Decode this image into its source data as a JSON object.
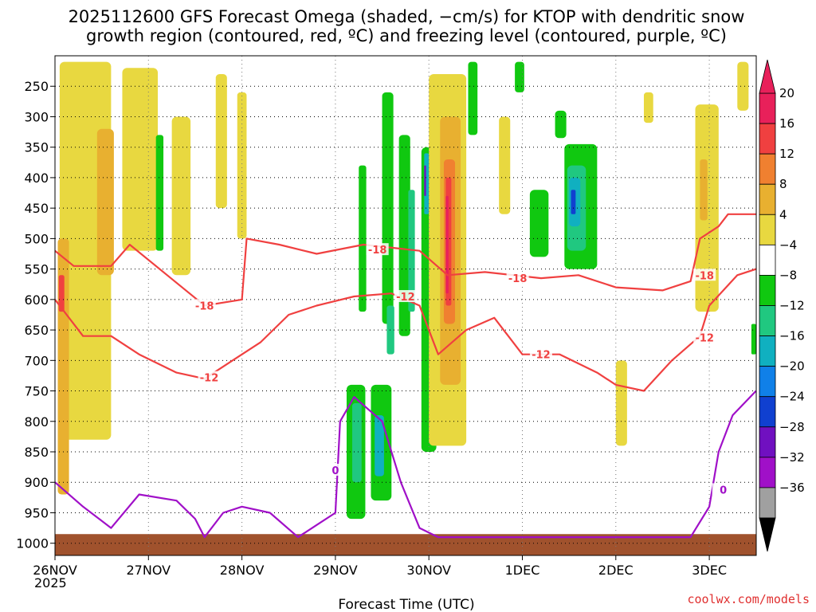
{
  "chart_data": {
    "type": "heatmap",
    "title_line1": "2025112600 GFS Forecast Omega (shaded, −cm/s) for KTOP with dendritic snow",
    "title_line2": "growth region (contoured, red, ºC) and freezing level (contoured, purple, ºC)",
    "xlabel": "Forecast Time (UTC)",
    "x_ticks": [
      "26NOV",
      "27NOV",
      "28NOV",
      "29NOV",
      "30NOV",
      "1DEC",
      "2DEC",
      "3DEC"
    ],
    "x_year": "2025",
    "x_range_days": [
      0,
      7.5
    ],
    "y_ticks": [
      "250",
      "300",
      "350",
      "400",
      "450",
      "500",
      "550",
      "600",
      "650",
      "700",
      "750",
      "800",
      "850",
      "900",
      "950",
      "1000"
    ],
    "y_tick_values": [
      250,
      300,
      350,
      400,
      450,
      500,
      550,
      600,
      650,
      700,
      750,
      800,
      850,
      900,
      950,
      1000
    ],
    "y_range_hpa": [
      200,
      1020
    ],
    "ground_level_hpa": 985,
    "grid": "dotted",
    "colorbar": {
      "labels": [
        "20",
        "16",
        "12",
        "8",
        "4",
        "−4",
        "−8",
        "−12",
        "−16",
        "−20",
        "−24",
        "−28",
        "−32",
        "−36"
      ],
      "bins": [
        {
          "color": "#e8205a"
        },
        {
          "color": "#f04040"
        },
        {
          "color": "#f08030"
        },
        {
          "color": "#e8b030"
        },
        {
          "color": "#e8d840"
        },
        {
          "color": "#ffffff"
        },
        {
          "color": "#10c810"
        },
        {
          "color": "#20c880"
        },
        {
          "color": "#10b0c0"
        },
        {
          "color": "#1080e8"
        },
        {
          "color": "#1040d0"
        },
        {
          "color": "#7010c0"
        },
        {
          "color": "#a010c8"
        },
        {
          "color": "#a0a0a0"
        }
      ],
      "top_arrow_color": "#e8205a",
      "bottom_arrow_color": "#000000"
    },
    "ground_color": "#a0522d",
    "omega_regions": [
      {
        "day": 0.05,
        "width": 0.55,
        "p_top": 210,
        "p_bottom": 830,
        "color": "#e8d840"
      },
      {
        "day": 0.45,
        "width": 0.18,
        "p_top": 320,
        "p_bottom": 560,
        "color": "#e8b030"
      },
      {
        "day": 0.03,
        "width": 0.12,
        "p_top": 500,
        "p_bottom": 920,
        "color": "#e8b030"
      },
      {
        "day": 0.04,
        "width": 0.06,
        "p_top": 560,
        "p_bottom": 620,
        "color": "#f04040"
      },
      {
        "day": 0.72,
        "width": 0.38,
        "p_top": 220,
        "p_bottom": 520,
        "color": "#e8d840"
      },
      {
        "day": 1.08,
        "width": 0.08,
        "p_top": 330,
        "p_bottom": 520,
        "color": "#10c810"
      },
      {
        "day": 1.25,
        "width": 0.2,
        "p_top": 300,
        "p_bottom": 560,
        "color": "#e8d840"
      },
      {
        "day": 1.72,
        "width": 0.12,
        "p_top": 230,
        "p_bottom": 450,
        "color": "#e8d840"
      },
      {
        "day": 1.95,
        "width": 0.1,
        "p_top": 260,
        "p_bottom": 500,
        "color": "#e8d840"
      },
      {
        "day": 3.25,
        "width": 0.08,
        "p_top": 380,
        "p_bottom": 620,
        "color": "#10c810"
      },
      {
        "day": 3.5,
        "width": 0.12,
        "p_top": 260,
        "p_bottom": 640,
        "color": "#10c810"
      },
      {
        "day": 3.68,
        "width": 0.12,
        "p_top": 330,
        "p_bottom": 660,
        "color": "#10c810"
      },
      {
        "day": 3.78,
        "width": 0.07,
        "p_top": 420,
        "p_bottom": 620,
        "color": "#20c880"
      },
      {
        "day": 3.92,
        "width": 0.16,
        "p_top": 350,
        "p_bottom": 850,
        "color": "#10c810"
      },
      {
        "day": 3.95,
        "width": 0.05,
        "p_top": 360,
        "p_bottom": 460,
        "color": "#10b0c0"
      },
      {
        "day": 3.95,
        "width": 0.02,
        "p_top": 380,
        "p_bottom": 430,
        "color": "#7010c0"
      },
      {
        "day": 3.12,
        "width": 0.2,
        "p_top": 740,
        "p_bottom": 960,
        "color": "#10c810"
      },
      {
        "day": 3.18,
        "width": 0.1,
        "p_top": 770,
        "p_bottom": 900,
        "color": "#20c880"
      },
      {
        "day": 3.38,
        "width": 0.22,
        "p_top": 740,
        "p_bottom": 930,
        "color": "#10c810"
      },
      {
        "day": 3.42,
        "width": 0.1,
        "p_top": 790,
        "p_bottom": 890,
        "color": "#10b0c0"
      },
      {
        "day": 3.55,
        "width": 0.08,
        "p_top": 610,
        "p_bottom": 690,
        "color": "#20c880"
      },
      {
        "day": 4.0,
        "width": 0.4,
        "p_top": 230,
        "p_bottom": 840,
        "color": "#e8d840"
      },
      {
        "day": 4.12,
        "width": 0.22,
        "p_top": 300,
        "p_bottom": 740,
        "color": "#e8b030"
      },
      {
        "day": 4.16,
        "width": 0.12,
        "p_top": 370,
        "p_bottom": 640,
        "color": "#f08030"
      },
      {
        "day": 4.18,
        "width": 0.06,
        "p_top": 400,
        "p_bottom": 610,
        "color": "#f04040"
      },
      {
        "day": 4.18,
        "width": 0.03,
        "p_top": 430,
        "p_bottom": 590,
        "color": "#e8205a"
      },
      {
        "day": 4.42,
        "width": 0.1,
        "p_top": 210,
        "p_bottom": 330,
        "color": "#10c810"
      },
      {
        "day": 4.75,
        "width": 0.12,
        "p_top": 300,
        "p_bottom": 460,
        "color": "#e8d840"
      },
      {
        "day": 4.92,
        "width": 0.1,
        "p_top": 210,
        "p_bottom": 260,
        "color": "#10c810"
      },
      {
        "day": 5.08,
        "width": 0.2,
        "p_top": 420,
        "p_bottom": 530,
        "color": "#10c810"
      },
      {
        "day": 5.35,
        "width": 0.12,
        "p_top": 290,
        "p_bottom": 335,
        "color": "#10c810"
      },
      {
        "day": 5.45,
        "width": 0.35,
        "p_top": 345,
        "p_bottom": 550,
        "color": "#10c810"
      },
      {
        "day": 5.48,
        "width": 0.2,
        "p_top": 380,
        "p_bottom": 520,
        "color": "#20c880"
      },
      {
        "day": 5.5,
        "width": 0.12,
        "p_top": 400,
        "p_bottom": 480,
        "color": "#10b0c0"
      },
      {
        "day": 5.52,
        "width": 0.05,
        "p_top": 420,
        "p_bottom": 460,
        "color": "#1040d0"
      },
      {
        "day": 6.3,
        "width": 0.1,
        "p_top": 260,
        "p_bottom": 310,
        "color": "#e8d840"
      },
      {
        "day": 6.85,
        "width": 0.25,
        "p_top": 280,
        "p_bottom": 620,
        "color": "#e8d840"
      },
      {
        "day": 6.9,
        "width": 0.08,
        "p_top": 370,
        "p_bottom": 470,
        "color": "#e8b030"
      },
      {
        "day": 7.3,
        "width": 0.12,
        "p_top": 210,
        "p_bottom": 290,
        "color": "#e8d840"
      },
      {
        "day": 6.0,
        "width": 0.12,
        "p_top": 700,
        "p_bottom": 840,
        "color": "#e8d840"
      },
      {
        "day": 7.45,
        "width": 0.05,
        "p_top": 640,
        "p_bottom": 690,
        "color": "#10c810"
      }
    ],
    "contours": [
      {
        "name": "-18",
        "color": "#f04040",
        "points": [
          [
            0,
            520
          ],
          [
            0.2,
            545
          ],
          [
            0.6,
            545
          ],
          [
            0.8,
            510
          ],
          [
            1.2,
            560
          ],
          [
            1.6,
            610
          ],
          [
            2.0,
            600
          ],
          [
            2.05,
            500
          ],
          [
            2.4,
            510
          ],
          [
            2.8,
            525
          ],
          [
            3.3,
            510
          ],
          [
            3.9,
            520
          ],
          [
            4.2,
            560
          ],
          [
            4.6,
            555
          ],
          [
            5.2,
            565
          ],
          [
            5.6,
            560
          ],
          [
            6.0,
            580
          ],
          [
            6.5,
            585
          ],
          [
            6.8,
            570
          ],
          [
            6.9,
            500
          ],
          [
            7.1,
            480
          ],
          [
            7.2,
            460
          ],
          [
            7.5,
            460
          ]
        ]
      },
      {
        "name": "-12",
        "color": "#f04040",
        "points": [
          [
            0,
            600
          ],
          [
            0.3,
            660
          ],
          [
            0.6,
            660
          ],
          [
            0.9,
            690
          ],
          [
            1.3,
            720
          ],
          [
            1.6,
            730
          ],
          [
            1.9,
            700
          ],
          [
            2.2,
            670
          ],
          [
            2.5,
            625
          ],
          [
            2.8,
            610
          ],
          [
            3.2,
            595
          ],
          [
            3.6,
            590
          ],
          [
            3.9,
            610
          ],
          [
            4.1,
            690
          ],
          [
            4.4,
            650
          ],
          [
            4.7,
            630
          ],
          [
            5.0,
            690
          ],
          [
            5.4,
            690
          ],
          [
            5.8,
            720
          ],
          [
            6.0,
            740
          ],
          [
            6.3,
            750
          ],
          [
            6.6,
            700
          ],
          [
            6.9,
            660
          ],
          [
            7.0,
            610
          ],
          [
            7.3,
            560
          ],
          [
            7.5,
            550
          ]
        ]
      },
      {
        "name": "0",
        "color": "#a010c8",
        "points": [
          [
            0,
            900
          ],
          [
            0.3,
            940
          ],
          [
            0.6,
            975
          ],
          [
            0.9,
            920
          ],
          [
            1.3,
            930
          ],
          [
            1.5,
            960
          ],
          [
            1.6,
            990
          ],
          [
            1.8,
            950
          ],
          [
            2.0,
            940
          ],
          [
            2.3,
            950
          ],
          [
            2.6,
            990
          ],
          [
            2.8,
            970
          ],
          [
            3.0,
            950
          ],
          [
            3.05,
            800
          ],
          [
            3.2,
            760
          ],
          [
            3.5,
            800
          ],
          [
            3.7,
            900
          ],
          [
            3.9,
            975
          ],
          [
            4.1,
            990
          ],
          [
            6.8,
            990
          ],
          [
            7.0,
            940
          ],
          [
            7.1,
            850
          ],
          [
            7.25,
            790
          ],
          [
            7.5,
            750
          ]
        ]
      }
    ],
    "contour_labels": [
      {
        "text": "-18",
        "day": 1.6,
        "p": 610,
        "color": "#f04040"
      },
      {
        "text": "-18",
        "day": 3.45,
        "p": 518,
        "color": "#f04040"
      },
      {
        "text": "-18",
        "day": 4.95,
        "p": 565,
        "color": "#f04040"
      },
      {
        "text": "-18",
        "day": 6.95,
        "p": 560,
        "color": "#f04040"
      },
      {
        "text": "-12",
        "day": 1.65,
        "p": 728,
        "color": "#f04040"
      },
      {
        "text": "-12",
        "day": 3.75,
        "p": 595,
        "color": "#f04040"
      },
      {
        "text": "-12",
        "day": 5.2,
        "p": 690,
        "color": "#f04040"
      },
      {
        "text": "-12",
        "day": 6.95,
        "p": 662,
        "color": "#f04040"
      },
      {
        "text": "0",
        "day": 3.0,
        "p": 880,
        "color": "#a010c8"
      },
      {
        "text": "0",
        "day": 7.15,
        "p": 912,
        "color": "#a010c8"
      }
    ]
  },
  "credit": "coolwx.com/models"
}
